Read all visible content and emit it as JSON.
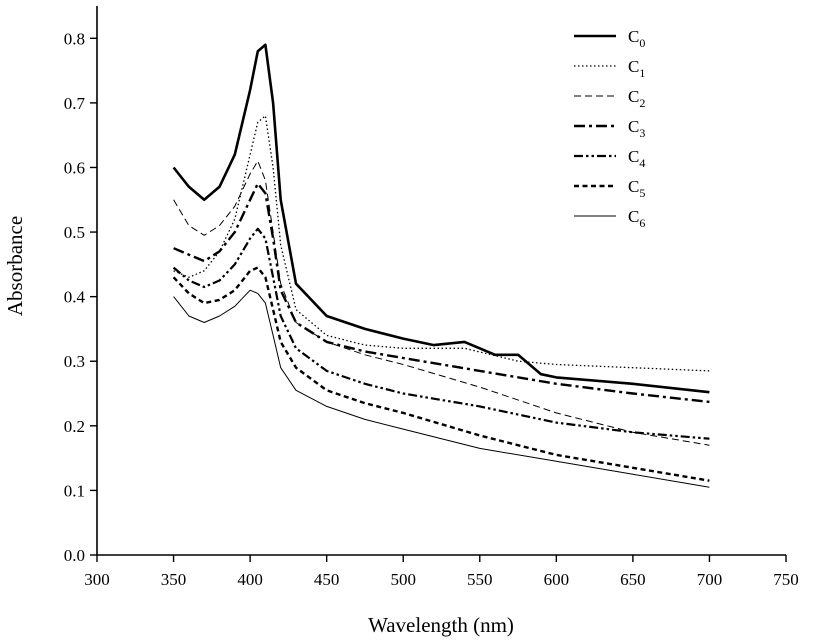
{
  "chart_data": {
    "type": "line",
    "title": "",
    "xlabel": "Wavelength (nm)",
    "ylabel": "Absorbance",
    "xlim": [
      300,
      750
    ],
    "ylim": [
      0.0,
      0.85
    ],
    "xticks": [
      300,
      350,
      400,
      450,
      500,
      550,
      600,
      650,
      700,
      750
    ],
    "xtick_labels": [
      "300",
      "350",
      "400",
      "450",
      "500",
      "550",
      "600",
      "650",
      "700",
      "750"
    ],
    "yticks": [
      0.0,
      0.1,
      0.2,
      0.3,
      0.4,
      0.5,
      0.6,
      0.7,
      0.8
    ],
    "ytick_labels": [
      "0.0",
      "0.1",
      "0.2",
      "0.3",
      "0.4",
      "0.5",
      "0.6",
      "0.7",
      "0.8"
    ],
    "grid": false,
    "legend_position": "top-right",
    "series": [
      {
        "name": "C",
        "sub": "0",
        "style": "solid-thick",
        "x": [
          350,
          360,
          370,
          380,
          390,
          400,
          405,
          410,
          415,
          420,
          430,
          450,
          475,
          500,
          520,
          540,
          560,
          575,
          590,
          600,
          650,
          700
        ],
        "y": [
          0.6,
          0.57,
          0.55,
          0.57,
          0.62,
          0.72,
          0.78,
          0.79,
          0.7,
          0.55,
          0.42,
          0.37,
          0.35,
          0.335,
          0.325,
          0.33,
          0.31,
          0.31,
          0.28,
          0.275,
          0.265,
          0.252
        ]
      },
      {
        "name": "C",
        "sub": "1",
        "style": "dotted",
        "x": [
          350,
          360,
          370,
          380,
          390,
          400,
          405,
          410,
          415,
          420,
          430,
          450,
          475,
          500,
          540,
          575,
          600,
          650,
          700
        ],
        "y": [
          0.44,
          0.43,
          0.44,
          0.47,
          0.52,
          0.62,
          0.67,
          0.68,
          0.6,
          0.48,
          0.38,
          0.34,
          0.325,
          0.32,
          0.32,
          0.3,
          0.295,
          0.29,
          0.285
        ]
      },
      {
        "name": "C",
        "sub": "2",
        "style": "dashed-thin",
        "x": [
          350,
          360,
          370,
          380,
          390,
          400,
          405,
          410,
          415,
          420,
          430,
          450,
          475,
          500,
          550,
          600,
          650,
          700
        ],
        "y": [
          0.55,
          0.51,
          0.495,
          0.51,
          0.54,
          0.59,
          0.61,
          0.58,
          0.5,
          0.42,
          0.36,
          0.33,
          0.31,
          0.295,
          0.26,
          0.22,
          0.19,
          0.17
        ]
      },
      {
        "name": "C",
        "sub": "3",
        "style": "dash-dot-thick",
        "x": [
          350,
          360,
          370,
          380,
          390,
          400,
          405,
          410,
          415,
          420,
          430,
          450,
          475,
          500,
          550,
          600,
          650,
          700
        ],
        "y": [
          0.475,
          0.465,
          0.455,
          0.47,
          0.5,
          0.55,
          0.575,
          0.56,
          0.49,
          0.41,
          0.36,
          0.33,
          0.315,
          0.305,
          0.285,
          0.265,
          0.25,
          0.237
        ]
      },
      {
        "name": "C",
        "sub": "4",
        "style": "dash-dot-dot",
        "x": [
          350,
          360,
          370,
          380,
          390,
          400,
          405,
          410,
          415,
          420,
          430,
          450,
          475,
          500,
          550,
          600,
          650,
          700
        ],
        "y": [
          0.445,
          0.425,
          0.415,
          0.425,
          0.45,
          0.49,
          0.505,
          0.49,
          0.43,
          0.37,
          0.32,
          0.285,
          0.265,
          0.25,
          0.23,
          0.205,
          0.19,
          0.18
        ]
      },
      {
        "name": "C",
        "sub": "5",
        "style": "dashed-thick",
        "x": [
          350,
          360,
          370,
          380,
          390,
          400,
          405,
          410,
          415,
          420,
          430,
          450,
          475,
          500,
          550,
          600,
          650,
          700
        ],
        "y": [
          0.43,
          0.405,
          0.39,
          0.395,
          0.41,
          0.44,
          0.445,
          0.43,
          0.38,
          0.33,
          0.29,
          0.255,
          0.235,
          0.22,
          0.185,
          0.155,
          0.135,
          0.115
        ]
      },
      {
        "name": "C",
        "sub": "6",
        "style": "solid-thin",
        "x": [
          350,
          360,
          370,
          380,
          390,
          400,
          405,
          410,
          415,
          420,
          430,
          450,
          475,
          500,
          550,
          600,
          650,
          700
        ],
        "y": [
          0.4,
          0.37,
          0.36,
          0.37,
          0.385,
          0.41,
          0.405,
          0.39,
          0.34,
          0.29,
          0.255,
          0.23,
          0.21,
          0.195,
          0.165,
          0.145,
          0.125,
          0.105
        ]
      }
    ]
  }
}
